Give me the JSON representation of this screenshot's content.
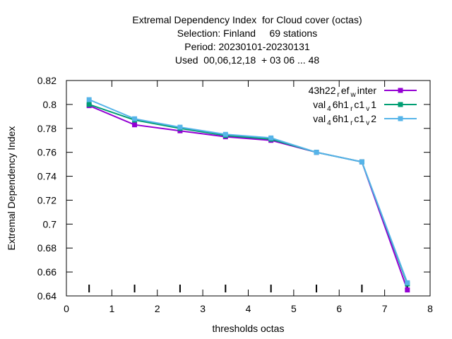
{
  "chart_data": {
    "type": "line",
    "title_lines": [
      "Extremal Dependency Index  for Cloud cover (octas)",
      "Selection: Finland     69 stations",
      "Period: 20230101-20230131",
      "Used  00,06,12,18  + 03 06 ... 48"
    ],
    "xlabel": "thresholds octas",
    "ylabel": "Extremal Dependency Index",
    "xlim": [
      0,
      8
    ],
    "ylim": [
      0.64,
      0.82
    ],
    "x_ticks": [
      "0",
      "1",
      "2",
      "3",
      "4",
      "5",
      "6",
      "7",
      "8"
    ],
    "y_ticks": [
      "0.64",
      "0.66",
      "0.68",
      "0.7",
      "0.72",
      "0.74",
      "0.76",
      "0.78",
      "0.8",
      "0.82"
    ],
    "x": [
      0.5,
      1.5,
      2.5,
      3.5,
      4.5,
      5.5,
      6.5,
      7.5
    ],
    "series": [
      {
        "name": "43h22_ref_winter",
        "legend": {
          "base": "43h22",
          "parts": [
            [
              "sub",
              "r"
            ],
            [
              "norm",
              "ef"
            ],
            [
              "sub",
              "w"
            ],
            [
              "norm",
              "inter"
            ]
          ]
        },
        "color": "#9400d3",
        "marker": "square",
        "values": [
          0.799,
          0.783,
          0.778,
          0.773,
          0.77,
          0.76,
          0.752,
          0.645
        ]
      },
      {
        "name": "val_46h1_rc1_v1",
        "legend": {
          "base": "val",
          "parts": [
            [
              "sub",
              "4"
            ],
            [
              "norm",
              "6h1"
            ],
            [
              "sub",
              "r"
            ],
            [
              "norm",
              "c1"
            ],
            [
              "sub",
              "v"
            ],
            [
              "norm",
              "1"
            ]
          ]
        },
        "color": "#009e73",
        "marker": "square",
        "values": [
          0.8,
          0.787,
          0.78,
          0.774,
          0.771,
          0.76,
          0.752,
          0.65
        ]
      },
      {
        "name": "val_46h1_rc1_v2",
        "legend": {
          "base": "val",
          "parts": [
            [
              "sub",
              "4"
            ],
            [
              "norm",
              "6h1"
            ],
            [
              "sub",
              "r"
            ],
            [
              "norm",
              "c1"
            ],
            [
              "sub",
              "v"
            ],
            [
              "norm",
              "2"
            ]
          ]
        },
        "color": "#56b4e9",
        "marker": "square",
        "values": [
          0.804,
          0.788,
          0.781,
          0.775,
          0.772,
          0.76,
          0.752,
          0.651
        ]
      }
    ],
    "sample_ticks_at": [
      0.5,
      1.5,
      2.5,
      3.5,
      4.5,
      5.5,
      6.5,
      7.5
    ],
    "grid": false,
    "legend_position": "top-right"
  }
}
